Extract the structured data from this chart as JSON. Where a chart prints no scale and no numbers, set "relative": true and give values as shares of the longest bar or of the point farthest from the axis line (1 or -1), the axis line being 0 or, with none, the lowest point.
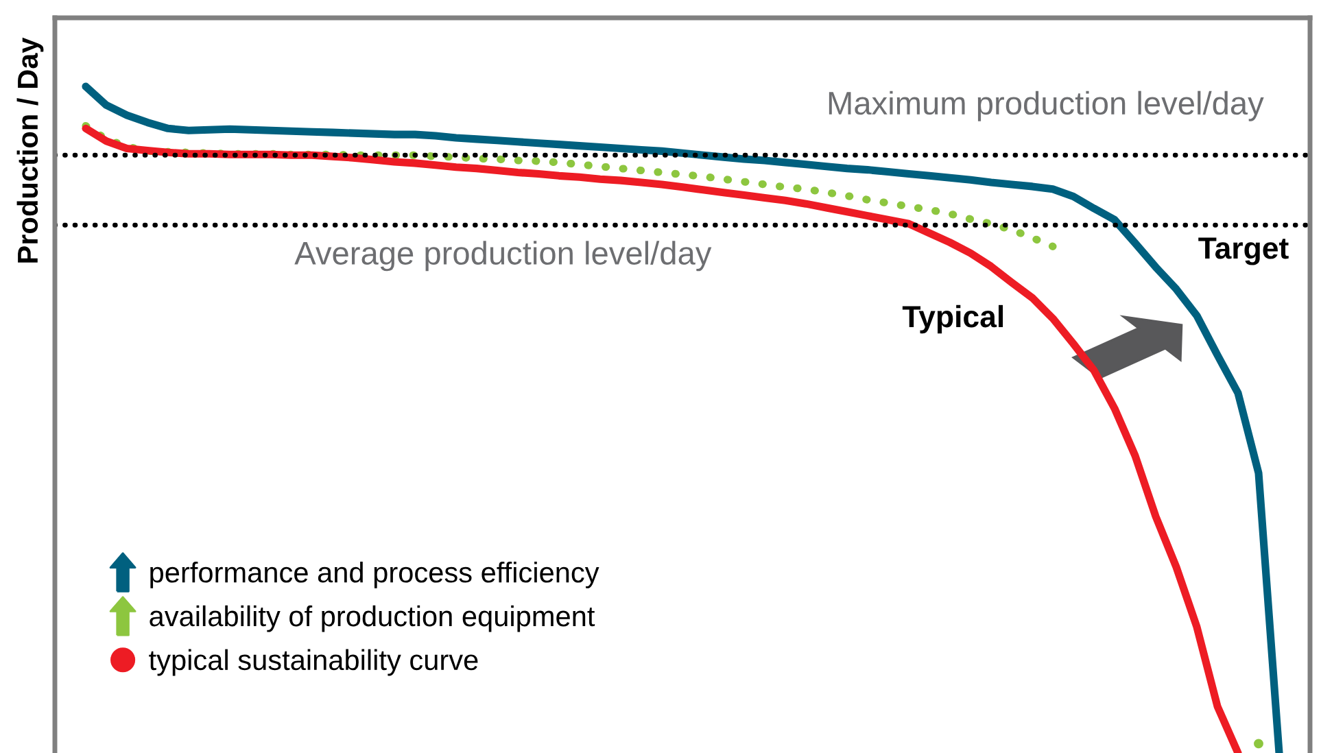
{
  "chart_data": {
    "type": "line",
    "relative": true,
    "ylabel": "Production / Day",
    "legend": "bottom left",
    "line_style": "solid",
    "categories": [
      null,
      null,
      null,
      null,
      null,
      null,
      null,
      null,
      null,
      null,
      null,
      null,
      null,
      null,
      null,
      null,
      null,
      null,
      null,
      null,
      null,
      null,
      null,
      null,
      null,
      null,
      null,
      null,
      null,
      null,
      null,
      null,
      null,
      null,
      null,
      null,
      null,
      null,
      null,
      null,
      null,
      null,
      null,
      null,
      null,
      null,
      null,
      null,
      null,
      null,
      null,
      null,
      null,
      null,
      null,
      null,
      null,
      null,
      null,
      null,
      null
    ],
    "series": [
      {
        "name": "performance and process efficiency",
        "color": "#00607f",
        "values": [
          null,
          1.0,
          0.972,
          0.957,
          0.946,
          0.937,
          0.934,
          0.935,
          0.936,
          0.935,
          0.934,
          0.933,
          0.932,
          0.931,
          0.93,
          0.929,
          0.928,
          0.928,
          0.926,
          0.923,
          0.921,
          0.919,
          0.917,
          0.915,
          0.913,
          0.911,
          0.909,
          0.907,
          0.905,
          0.903,
          0.9,
          0.897,
          0.894,
          0.891,
          0.889,
          0.886,
          0.883,
          0.88,
          0.877,
          0.875,
          0.872,
          0.869,
          0.866,
          0.863,
          0.86,
          0.856,
          0.853,
          0.85,
          0.846,
          0.835,
          0.817,
          0.8,
          0.765,
          0.729,
          0.696,
          0.656,
          0.597,
          0.54,
          0.42,
          0,
          null
        ]
      },
      {
        "name": "availability of production equipment",
        "color": "#8dc63f",
        "line_style": "dotted",
        "values": [
          null,
          0.941,
          0.921,
          0.91,
          0.903,
          0.902,
          0.901,
          0.9,
          0.899,
          0.899,
          0.899,
          0.898,
          0.898,
          0.898,
          0.897,
          0.897,
          0.897,
          0.897,
          0.895,
          0.894,
          0.892,
          0.891,
          0.889,
          0.888,
          0.886,
          0.883,
          0.88,
          0.877,
          0.874,
          0.871,
          0.868,
          0.865,
          0.861,
          0.857,
          0.853,
          0.849,
          0.846,
          0.841,
          0.836,
          0.83,
          0.825,
          0.82,
          0.815,
          0.809,
          0.801,
          0.794,
          0.785,
          0.773,
          0.76,
          null,
          null,
          null,
          null,
          null,
          null,
          null,
          null,
          null,
          0.014,
          null,
          null
        ]
      },
      {
        "name": "typical sustainability curve",
        "color": "#ed1c24",
        "values": [
          null,
          0.937,
          0.918,
          0.907,
          0.904,
          0.901,
          0.899,
          0.899,
          0.898,
          0.898,
          0.898,
          0.897,
          0.897,
          0.895,
          0.893,
          0.89,
          0.887,
          0.885,
          0.882,
          0.879,
          0.877,
          0.874,
          0.871,
          0.869,
          0.866,
          0.864,
          0.861,
          0.859,
          0.856,
          0.853,
          0.849,
          0.845,
          0.841,
          0.837,
          0.833,
          0.829,
          0.824,
          0.818,
          0.812,
          0.806,
          0.8,
          0.794,
          0.78,
          0.766,
          0.75,
          0.73,
          0.706,
          0.683,
          0.652,
          0.614,
          0.574,
          0.517,
          0.446,
          0.355,
          0.279,
          0.189,
          0.07,
          0,
          null,
          null,
          null
        ]
      }
    ],
    "ref_lines": [
      {
        "axis": "y",
        "value": 0.897,
        "color": "#000000",
        "line_style": "dotted"
      },
      {
        "axis": "y",
        "value": 0.792,
        "color": "#000000",
        "line_style": "dotted"
      }
    ],
    "annotations": [
      "Maximum production level/day",
      "Average production level/day",
      "Typical",
      "Target"
    ]
  }
}
